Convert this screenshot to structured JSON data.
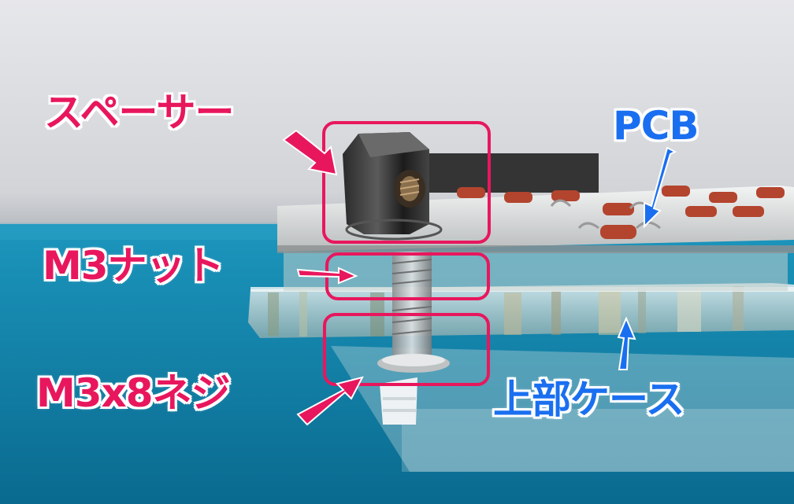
{
  "labels": {
    "spacer": "スペーサー",
    "nut": "M3ナット",
    "screw": "M3x8ネジ",
    "pcb": "PCB",
    "top_case": "上部ケース"
  },
  "colors": {
    "label_red": "#e8175d",
    "label_blue": "#1a6ff0",
    "highlight_box": "#e8175d",
    "arrow_red": "#e8175d",
    "arrow_blue": "#1a6ff0",
    "background_water": "#0f7fa8"
  },
  "icons": {
    "red_arrows": "arrow-icon",
    "blue_arrows": "arrow-icon"
  }
}
